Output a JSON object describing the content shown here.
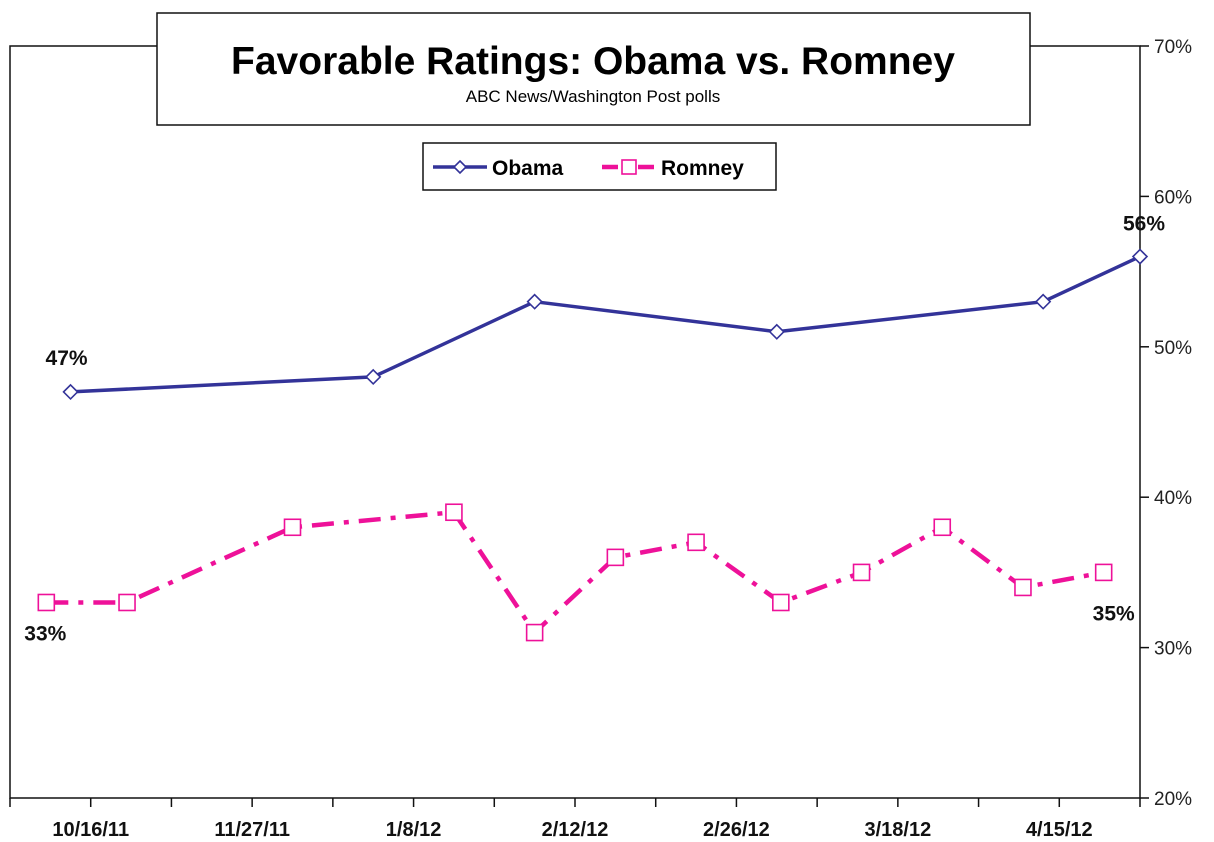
{
  "chart_data": {
    "type": "line",
    "title": "Favorable Ratings: Obama vs. Romney",
    "subtitle": "ABC News/Washington Post polls",
    "y_axis_side": "right",
    "ylim": [
      20,
      70
    ],
    "y_ticks": [
      20,
      30,
      40,
      50,
      60,
      70
    ],
    "y_tick_format": "{v}%",
    "x_tick_labels": [
      "10/16/11",
      "11/27/11",
      "1/8/12",
      "2/12/12",
      "2/26/12",
      "3/18/12",
      "4/15/12"
    ],
    "legend": {
      "placement": "top-center",
      "entries": [
        "Obama",
        "Romney"
      ]
    },
    "grid": false,
    "series": [
      {
        "name": "Obama",
        "color": "#333399",
        "line_style": "solid",
        "marker": "diamond",
        "x": [
          0.25,
          4.0,
          6.0,
          9.0,
          12.3,
          13.5
        ],
        "values": [
          47,
          48,
          53,
          51,
          53,
          56
        ]
      },
      {
        "name": "Romney",
        "color": "#ee1199",
        "line_style": "dash-dot",
        "marker": "square",
        "x": [
          -0.05,
          0.95,
          3.0,
          5.0,
          6.0,
          7.0,
          8.0,
          9.05,
          10.05,
          11.05,
          12.05,
          13.05
        ],
        "values": [
          33,
          33,
          38,
          39,
          31,
          36,
          37,
          33,
          35,
          38,
          34,
          35
        ]
      }
    ],
    "data_labels": [
      {
        "series": 0,
        "point": 0,
        "text": "47%"
      },
      {
        "series": 0,
        "point": 5,
        "text": "56%"
      },
      {
        "series": 1,
        "point": 0,
        "text": "33%"
      },
      {
        "series": 1,
        "point": 11,
        "text": "35%"
      }
    ]
  }
}
